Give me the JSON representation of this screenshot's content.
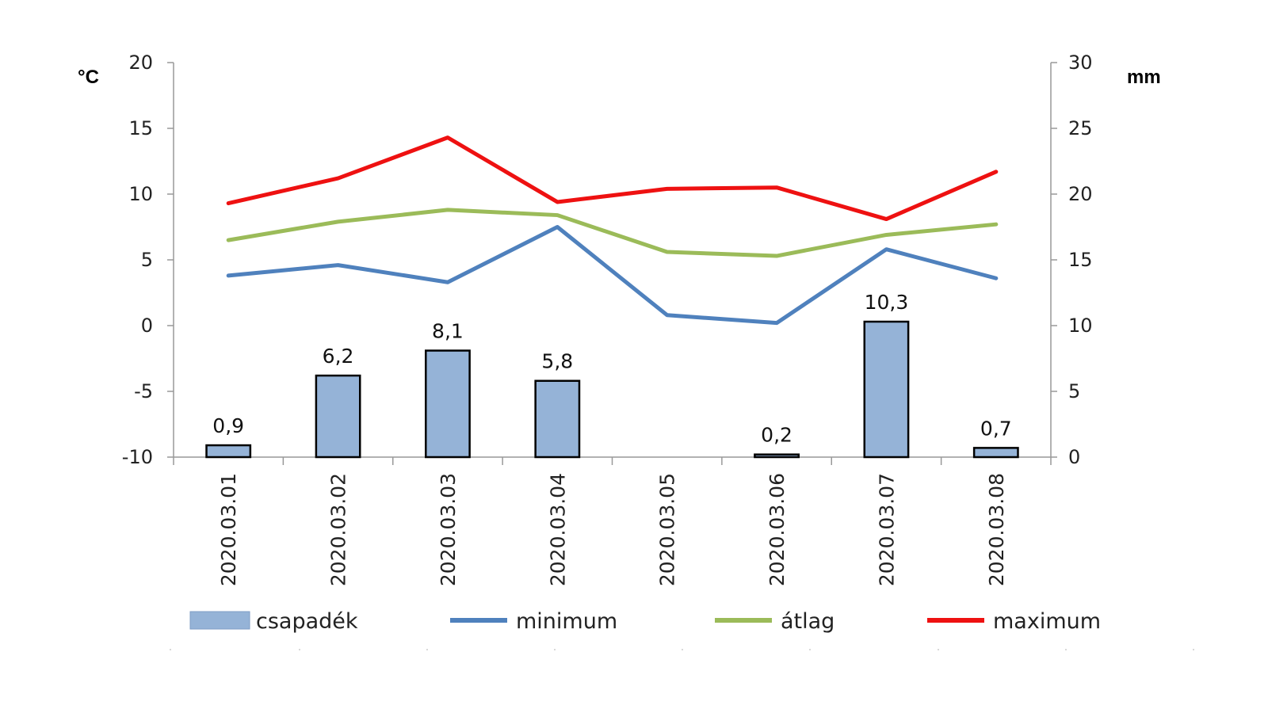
{
  "chart_data": {
    "type": "bar",
    "categories": [
      "2020.03.01",
      "2020.03.02",
      "2020.03.03",
      "2020.03.04",
      "2020.03.05",
      "2020.03.06",
      "2020.03.07",
      "2020.03.08"
    ],
    "y_left": {
      "unit": "°C",
      "min": -10,
      "max": 20,
      "step": 5,
      "ticks": [
        "-10",
        "-5",
        "0",
        "5",
        "10",
        "15",
        "20"
      ]
    },
    "y_right": {
      "unit": "mm",
      "min": 0,
      "max": 30,
      "step": 5,
      "ticks": [
        "0",
        "5",
        "10",
        "15",
        "20",
        "25",
        "30"
      ]
    },
    "bars": {
      "name": "csapadék",
      "axis": "right",
      "values": [
        0.9,
        6.2,
        8.1,
        5.8,
        0,
        0.2,
        10.3,
        0.7
      ],
      "labels": [
        "0,9",
        "6,2",
        "8,1",
        "5,8",
        "",
        "0,2",
        "10,3",
        "0,7"
      ],
      "color": "#95B3D7"
    },
    "series": [
      {
        "name": "minimum",
        "axis": "left",
        "type": "line",
        "color": "#4F81BD",
        "values": [
          3.8,
          4.6,
          3.3,
          7.5,
          0.8,
          0.2,
          5.8,
          3.6
        ]
      },
      {
        "name": "átlag",
        "axis": "left",
        "type": "line",
        "color": "#9BBB59",
        "values": [
          6.5,
          7.9,
          8.8,
          8.4,
          5.6,
          5.3,
          6.9,
          7.7
        ]
      },
      {
        "name": "maximum",
        "axis": "left",
        "type": "line",
        "color": "#EE1111",
        "values": [
          9.3,
          11.2,
          14.3,
          9.4,
          10.4,
          10.5,
          8.1,
          11.7
        ]
      }
    ],
    "legend": {
      "placement": "bottom"
    }
  }
}
